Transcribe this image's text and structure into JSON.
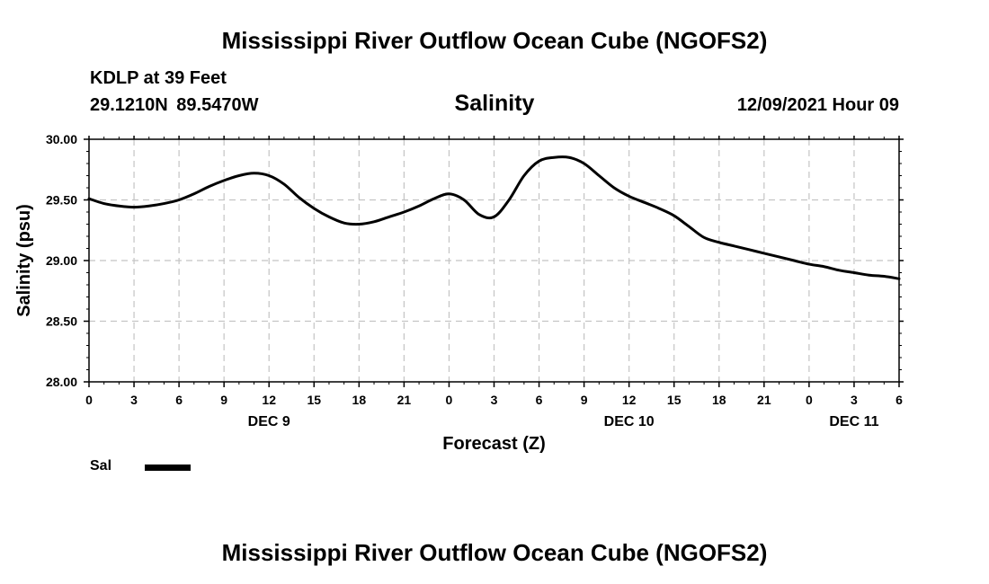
{
  "header": {
    "title": "Mississippi River Outflow Ocean Cube (NGOFS2)",
    "station": "KDLP at 39 Feet",
    "coordinates": "29.1210N  89.5470W",
    "chart_title": "Salinity",
    "datetime": "12/09/2021 Hour 09"
  },
  "legend": {
    "label": "Sal",
    "color": "#000000"
  },
  "footer": {
    "title": "Mississippi River Outflow Ocean Cube (NGOFS2)"
  },
  "chart_data": {
    "type": "line",
    "title": "Salinity",
    "xlabel": "Forecast (Z)",
    "ylabel": "Salinity (psu)",
    "xlim": [
      0,
      54
    ],
    "ylim": [
      28.0,
      30.0
    ],
    "grid": true,
    "legend_position": "bottom-left",
    "x_tick_values": [
      0,
      3,
      6,
      9,
      12,
      15,
      18,
      21,
      24,
      27,
      30,
      33,
      36,
      39,
      42,
      45,
      48,
      51,
      54
    ],
    "x_tick_labels": [
      "0",
      "3",
      "6",
      "9",
      "12",
      "15",
      "18",
      "21",
      "0",
      "3",
      "6",
      "9",
      "12",
      "15",
      "18",
      "21",
      "0",
      "3",
      "6"
    ],
    "y_tick_values": [
      28.0,
      28.5,
      29.0,
      29.5,
      30.0
    ],
    "y_tick_labels": [
      "28.00",
      "28.50",
      "29.00",
      "29.50",
      "30.00"
    ],
    "day_labels": [
      {
        "x": 12,
        "label": "DEC 9"
      },
      {
        "x": 36,
        "label": "DEC 10"
      },
      {
        "x": 51,
        "label": "DEC 11"
      }
    ],
    "series": [
      {
        "name": "Sal",
        "color": "#000000",
        "x": [
          0,
          1,
          2,
          3,
          4,
          5,
          6,
          7,
          8,
          9,
          10,
          11,
          12,
          13,
          14,
          15,
          16,
          17,
          18,
          19,
          20,
          21,
          22,
          23,
          24,
          25,
          26,
          27,
          28,
          29,
          30,
          31,
          32,
          33,
          34,
          35,
          36,
          37,
          38,
          39,
          40,
          41,
          42,
          43,
          44,
          45,
          46,
          47,
          48,
          49,
          50,
          51,
          52,
          53,
          54
        ],
        "values": [
          29.51,
          29.47,
          29.45,
          29.44,
          29.45,
          29.47,
          29.5,
          29.55,
          29.61,
          29.66,
          29.7,
          29.72,
          29.7,
          29.63,
          29.52,
          29.43,
          29.36,
          29.31,
          29.3,
          29.32,
          29.36,
          29.4,
          29.45,
          29.51,
          29.55,
          29.5,
          29.38,
          29.36,
          29.5,
          29.7,
          29.82,
          29.85,
          29.85,
          29.8,
          29.7,
          29.6,
          29.53,
          29.48,
          29.43,
          29.37,
          29.28,
          29.19,
          29.15,
          29.12,
          29.09,
          29.06,
          29.03,
          29.0,
          28.97,
          28.95,
          28.92,
          28.9,
          28.88,
          28.87,
          28.85
        ]
      }
    ]
  }
}
